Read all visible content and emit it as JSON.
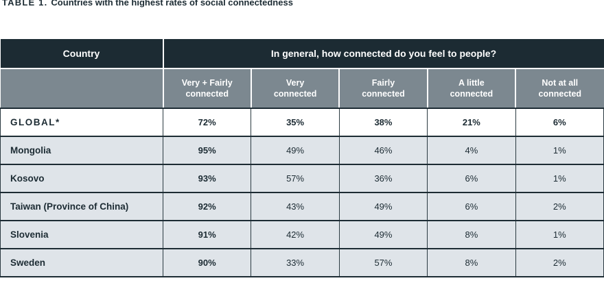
{
  "caption": {
    "label": "TABLE 1.",
    "text": "Countries with the highest rates of social connectedness"
  },
  "table": {
    "country_header": "Country",
    "question_header": "In general, how connected do you feel to people?",
    "sub_headers": [
      "Very + Fairly connected",
      "Very connected",
      "Fairly connected",
      "A little connected",
      "Not at all connected"
    ],
    "rows": [
      {
        "country": "GLOBAL*",
        "values": [
          "72%",
          "35%",
          "38%",
          "21%",
          "6%"
        ]
      },
      {
        "country": "Mongolia",
        "values": [
          "95%",
          "49%",
          "46%",
          "4%",
          "1%"
        ]
      },
      {
        "country": "Kosovo",
        "values": [
          "93%",
          "57%",
          "36%",
          "6%",
          "1%"
        ]
      },
      {
        "country": "Taiwan (Province of China)",
        "values": [
          "92%",
          "43%",
          "49%",
          "6%",
          "2%"
        ]
      },
      {
        "country": "Slovenia",
        "values": [
          "91%",
          "42%",
          "49%",
          "8%",
          "1%"
        ]
      },
      {
        "country": "Sweden",
        "values": [
          "90%",
          "33%",
          "57%",
          "8%",
          "2%"
        ]
      }
    ]
  },
  "colors": {
    "header_dark": "#1c2b33",
    "header_gray": "#7c8890",
    "row_light": "#dfe4e9",
    "row_white": "#ffffff",
    "text": "#1c2b33"
  },
  "chart_data": {
    "type": "table",
    "title": "TABLE 1. Countries with the highest rates of social connectedness",
    "group_header": "In general, how connected do you feel to people?",
    "columns": [
      "Country",
      "Very + Fairly connected",
      "Very connected",
      "Fairly connected",
      "A little connected",
      "Not at all connected"
    ],
    "rows": [
      [
        "GLOBAL*",
        "72%",
        "35%",
        "38%",
        "21%",
        "6%"
      ],
      [
        "Mongolia",
        "95%",
        "49%",
        "46%",
        "4%",
        "1%"
      ],
      [
        "Kosovo",
        "93%",
        "57%",
        "36%",
        "6%",
        "1%"
      ],
      [
        "Taiwan (Province of China)",
        "92%",
        "43%",
        "49%",
        "6%",
        "2%"
      ],
      [
        "Slovenia",
        "91%",
        "42%",
        "49%",
        "8%",
        "1%"
      ],
      [
        "Sweden",
        "90%",
        "33%",
        "57%",
        "8%",
        "2%"
      ]
    ]
  }
}
